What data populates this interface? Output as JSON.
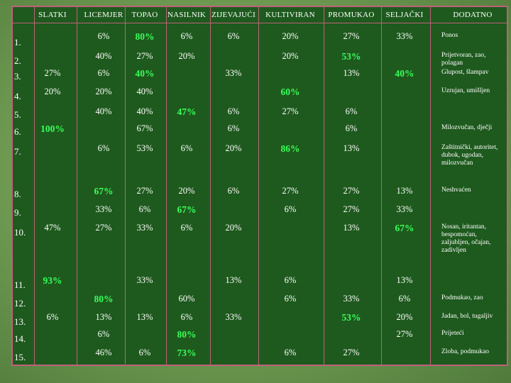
{
  "columns": [
    "SLATKI",
    "LICEMJER",
    "TOPAO",
    "NASILNIK",
    "ZIJEVAJUĆI",
    "KULTIVIRAN",
    "PROMUKAO",
    "SELJAČKI",
    "DODATNO"
  ],
  "rows": [
    {
      "num": "1.",
      "cells": {
        "licemjer": "6%",
        "topao": "80%",
        "nasilnik": "6%",
        "zijevajuci": "6%",
        "kultiviran": "20%",
        "promukao": "27%",
        "seljacki": "33%"
      },
      "note": "Ponos"
    },
    {
      "num": "2.",
      "cells": {
        "licemjer": "40%",
        "topao": "27%",
        "nasilnik": "20%",
        "kultiviran": "20%",
        "promukao": "53%"
      },
      "note": "Prijetvoran, zao, polagan"
    },
    {
      "num": "3.",
      "cells": {
        "slatki": "27%",
        "licemjer": "6%",
        "topao": "40%",
        "zijevajuci": "33%",
        "promukao": "13%",
        "seljacki": "40%"
      },
      "note": "Glupost, šlampav"
    },
    {
      "num": "4.",
      "cells": {
        "slatki": "20%",
        "licemjer": "20%",
        "topao": "40%",
        "kultiviran": "60%"
      },
      "note": "Uzrujan, umišljen"
    },
    {
      "num": "5.",
      "cells": {
        "licemjer": "40%",
        "topao": "40%",
        "nasilnik": "47%",
        "zijevajuci": "6%",
        "kultiviran": "27%",
        "promukao": "6%"
      },
      "note": ""
    },
    {
      "num": "6.",
      "cells": {
        "slatki": "100%",
        "topao": "67%",
        "zijevajuci": "6%",
        "promukao": "6%"
      },
      "note": "Milozvučan, dječji"
    },
    {
      "num": "7.",
      "cells": {
        "licemjer": "6%",
        "topao": "53%",
        "nasilnik": "6%",
        "zijevajuci": "20%",
        "kultiviran": "86%",
        "promukao": "13%"
      },
      "note": "Zaštitnički, autoritet, dubok, ugodan, milozvučan"
    },
    {
      "num": "8.",
      "cells": {
        "licemjer": "67%",
        "topao": "27%",
        "nasilnik": "20%",
        "zijevajuci": "6%",
        "kultiviran": "27%",
        "promukao": "27%",
        "seljacki": "13%"
      },
      "note": "Neshvaćen"
    },
    {
      "num": "9.",
      "cells": {
        "licemjer": "33%",
        "topao": "6%",
        "nasilnik": "67%",
        "kultiviran": "6%",
        "promukao": "27%",
        "seljacki": "33%"
      },
      "note": ""
    },
    {
      "num": "10.",
      "cells": {
        "slatki": "47%",
        "licemjer": "27%",
        "topao": "33%",
        "nasilnik": "6%",
        "zijevajuci": "20%",
        "promukao": "13%",
        "seljacki": "67%"
      },
      "note": "Nosan, iritantan, bespomoćan, zaljubljen, očajan, zadivljen"
    },
    {
      "num": "11.",
      "cells": {
        "slatki": "93%",
        "topao": "33%",
        "zijevajuci": "13%",
        "kultiviran": "6%",
        "seljacki": "13%"
      },
      "note": ""
    },
    {
      "num": "12.",
      "cells": {
        "licemjer": "80%",
        "nasilnik": "60%",
        "kultiviran": "6%",
        "promukao": "33%",
        "seljacki": "6%"
      },
      "note": "Podmukao, zao"
    },
    {
      "num": "13.",
      "cells": {
        "slatki": "6%",
        "licemjer": "13%",
        "topao": "13%",
        "nasilnik": "6%",
        "zijevajuci": "33%",
        "promukao": "53%",
        "seljacki": "20%"
      },
      "note": "Jadan, bol, tugaljiv"
    },
    {
      "num": "14.",
      "cells": {
        "licemjer": "6%",
        "nasilnik": "80%",
        "seljacki": "27%"
      },
      "note": "Prijeteći"
    },
    {
      "num": "15.",
      "cells": {
        "licemjer": "46%",
        "topao": "6%",
        "nasilnik": "73%",
        "kultiviran": "6%",
        "promukao": "27%"
      },
      "note": "Zloba, podmukao"
    }
  ],
  "highlighted": [
    "1.topao",
    "2.promukao",
    "3.topao",
    "3.seljacki",
    "4.kultiviran",
    "5.nasilnik",
    "6.slatki",
    "7.kultiviran",
    "8.licemjer",
    "9.nasilnik",
    "10.seljacki",
    "11.slatki",
    "12.licemjer",
    "13.promukao",
    "14.nasilnik",
    "15.nasilnik"
  ],
  "colors": {
    "background": "#1e5a1e",
    "border": "#c0607a",
    "highlight": "#39ff5a",
    "text": "#ffffff"
  }
}
